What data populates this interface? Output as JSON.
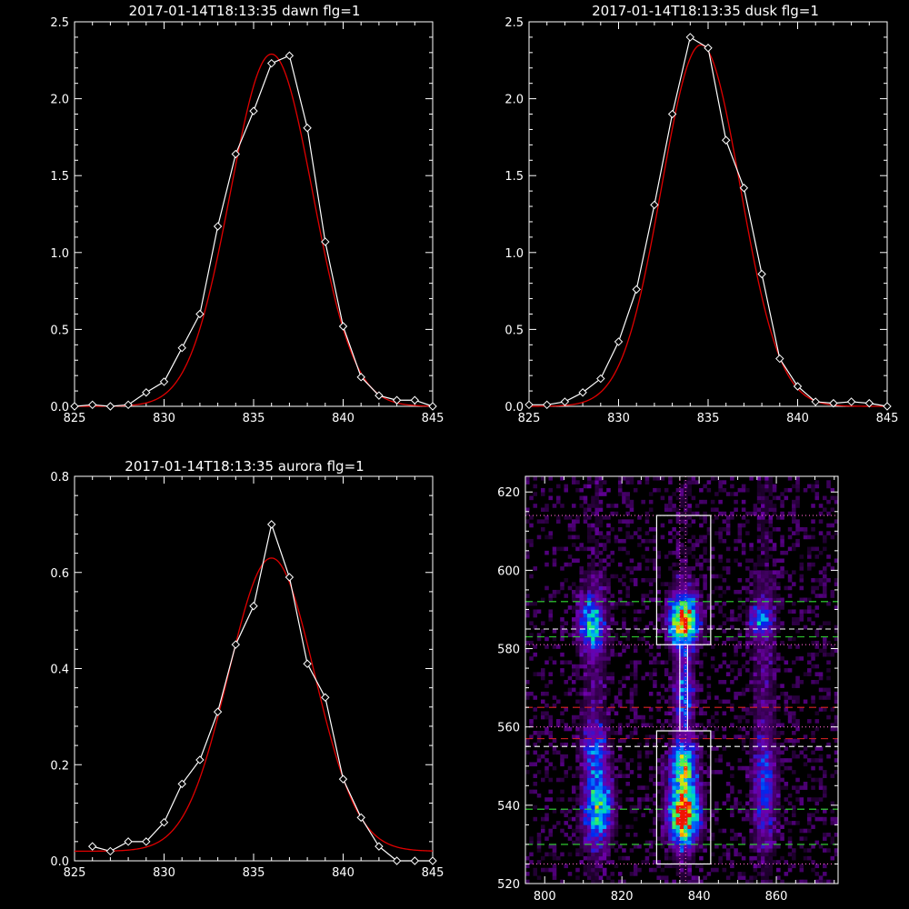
{
  "colors": {
    "background": "#000000",
    "axis": "#ffffff",
    "data_line": "#ffffff",
    "fit_line": "#e00000",
    "guide_green": "#33dd33",
    "guide_red": "#dd2222",
    "guide_white": "#ffffff",
    "guide_pink": "#ff66cc"
  },
  "chart_data": [
    {
      "id": "dawn",
      "type": "line",
      "title": "2017-01-14T18:13:35 dawn flg=1",
      "xlabel": "",
      "ylabel": "",
      "xlim": [
        825,
        845
      ],
      "ylim": [
        0,
        2.5
      ],
      "xticks": [
        "825",
        "830",
        "835",
        "840",
        "845"
      ],
      "yticks": [
        "0.0",
        "0.5",
        "1.0",
        "1.5",
        "2.0",
        "2.5"
      ],
      "ytick_values": [
        0,
        0.5,
        1.0,
        1.5,
        2.0,
        2.5
      ],
      "data_x": [
        825,
        826,
        827,
        828,
        829,
        830,
        831,
        832,
        833,
        834,
        835,
        836,
        837,
        838,
        839,
        840,
        841,
        842,
        843,
        844,
        845
      ],
      "data_y": [
        0.0,
        0.01,
        0.0,
        0.01,
        0.09,
        0.16,
        0.38,
        0.6,
        1.17,
        1.64,
        1.92,
        2.23,
        2.28,
        1.81,
        1.07,
        0.52,
        0.19,
        0.07,
        0.04,
        0.04,
        0.0
      ],
      "fit": {
        "amplitude": 2.29,
        "center": 836.0,
        "sigma": 2.3,
        "baseline": 0.0
      }
    },
    {
      "id": "dusk",
      "type": "line",
      "title": "2017-01-14T18:13:35 dusk flg=1",
      "xlabel": "",
      "ylabel": "",
      "xlim": [
        825,
        845
      ],
      "ylim": [
        0,
        2.5
      ],
      "xticks": [
        "825",
        "830",
        "835",
        "840",
        "845"
      ],
      "yticks": [
        "0.0",
        "0.5",
        "1.0",
        "1.5",
        "2.0",
        "2.5"
      ],
      "ytick_values": [
        0,
        0.5,
        1.0,
        1.5,
        2.0,
        2.5
      ],
      "data_x": [
        825,
        826,
        827,
        828,
        829,
        830,
        831,
        832,
        833,
        834,
        835,
        836,
        837,
        838,
        839,
        840,
        841,
        842,
        843,
        844,
        845
      ],
      "data_y": [
        0.01,
        0.01,
        0.03,
        0.09,
        0.18,
        0.42,
        0.76,
        1.31,
        1.9,
        2.4,
        2.33,
        1.73,
        1.42,
        0.86,
        0.31,
        0.13,
        0.03,
        0.02,
        0.03,
        0.02,
        0.0
      ],
      "fit": {
        "amplitude": 2.35,
        "center": 834.6,
        "sigma": 2.2,
        "baseline": 0.0
      }
    },
    {
      "id": "aurora",
      "type": "line",
      "title": "2017-01-14T18:13:35 aurora flg=1",
      "xlabel": "",
      "ylabel": "",
      "xlim": [
        825,
        845
      ],
      "ylim": [
        0,
        0.8
      ],
      "xticks": [
        "825",
        "830",
        "835",
        "840",
        "845"
      ],
      "yticks": [
        "0.0",
        "0.2",
        "0.4",
        "0.6",
        "0.8"
      ],
      "ytick_values": [
        0,
        0.2,
        0.4,
        0.6,
        0.8
      ],
      "data_x": [
        826,
        827,
        828,
        829,
        830,
        831,
        832,
        833,
        834,
        835,
        836,
        837,
        838,
        839,
        840,
        841,
        842,
        843,
        844,
        845
      ],
      "data_y": [
        0.03,
        0.02,
        0.04,
        0.04,
        0.08,
        0.16,
        0.21,
        0.31,
        0.45,
        0.53,
        0.7,
        0.59,
        0.41,
        0.34,
        0.17,
        0.09,
        0.03,
        0.0,
        0.0,
        0.0
      ],
      "fit": {
        "amplitude": 0.61,
        "center": 836.0,
        "sigma": 2.4,
        "baseline": 0.02
      }
    },
    {
      "id": "image",
      "type": "heatmap",
      "title": "",
      "xlabel": "",
      "ylabel": "",
      "xlim": [
        795,
        876
      ],
      "ylim": [
        520,
        624
      ],
      "xticks": [
        "800",
        "820",
        "840",
        "860"
      ],
      "xtick_values": [
        800,
        820,
        840,
        860
      ],
      "yticks": [
        "520",
        "540",
        "560",
        "580",
        "600",
        "620"
      ],
      "ytick_values": [
        520,
        540,
        560,
        580,
        600,
        620
      ],
      "blobs": [
        {
          "x": 812,
          "y": 586,
          "sx": 2.2,
          "sy": 4,
          "amp": 0.55
        },
        {
          "x": 814,
          "y": 540,
          "sx": 2.4,
          "sy": 6,
          "amp": 0.55
        },
        {
          "x": 813,
          "y": 555,
          "sx": 2.2,
          "sy": 4,
          "amp": 0.25
        },
        {
          "x": 836,
          "y": 587,
          "sx": 2.5,
          "sy": 4,
          "amp": 0.95
        },
        {
          "x": 836,
          "y": 538,
          "sx": 2.6,
          "sy": 5,
          "amp": 1.0
        },
        {
          "x": 836,
          "y": 550,
          "sx": 2.2,
          "sy": 4,
          "amp": 0.6
        },
        {
          "x": 836,
          "y": 568,
          "sx": 1.6,
          "sy": 6,
          "amp": 0.3
        },
        {
          "x": 856,
          "y": 587,
          "sx": 2.0,
          "sy": 3,
          "amp": 0.35
        },
        {
          "x": 857,
          "y": 545,
          "sx": 2.0,
          "sy": 8,
          "amp": 0.25
        }
      ],
      "boxes": [
        {
          "x0": 829,
          "x1": 843,
          "y0": 581,
          "y1": 614
        },
        {
          "x0": 829,
          "x1": 843,
          "y0": 525,
          "y1": 559
        },
        {
          "x0": 835,
          "x1": 837,
          "y0": 559,
          "y1": 581
        }
      ],
      "hlines": [
        {
          "y": 592,
          "color": "guide_green",
          "dash": "8,5"
        },
        {
          "y": 583,
          "color": "guide_green",
          "dash": "8,5"
        },
        {
          "y": 539,
          "color": "guide_green",
          "dash": "8,5"
        },
        {
          "y": 530,
          "color": "guide_green",
          "dash": "8,5"
        },
        {
          "y": 565,
          "color": "guide_red",
          "dash": "8,5"
        },
        {
          "y": 557,
          "color": "guide_red",
          "dash": "8,5"
        },
        {
          "y": 585,
          "color": "guide_white",
          "dash": "6,4"
        },
        {
          "y": 555,
          "color": "guide_white",
          "dash": "6,4"
        },
        {
          "y": 614,
          "color": "guide_pink",
          "dash": "1,3"
        },
        {
          "y": 581,
          "color": "guide_pink",
          "dash": "1,3"
        },
        {
          "y": 560,
          "color": "guide_pink",
          "dash": "1,3"
        },
        {
          "y": 525,
          "color": "guide_pink",
          "dash": "1,3"
        }
      ],
      "vlines": [
        {
          "x": 835,
          "color": "guide_pink",
          "dash": "1,3"
        },
        {
          "x": 836.5,
          "color": "guide_pink",
          "dash": "1,3"
        }
      ]
    }
  ]
}
